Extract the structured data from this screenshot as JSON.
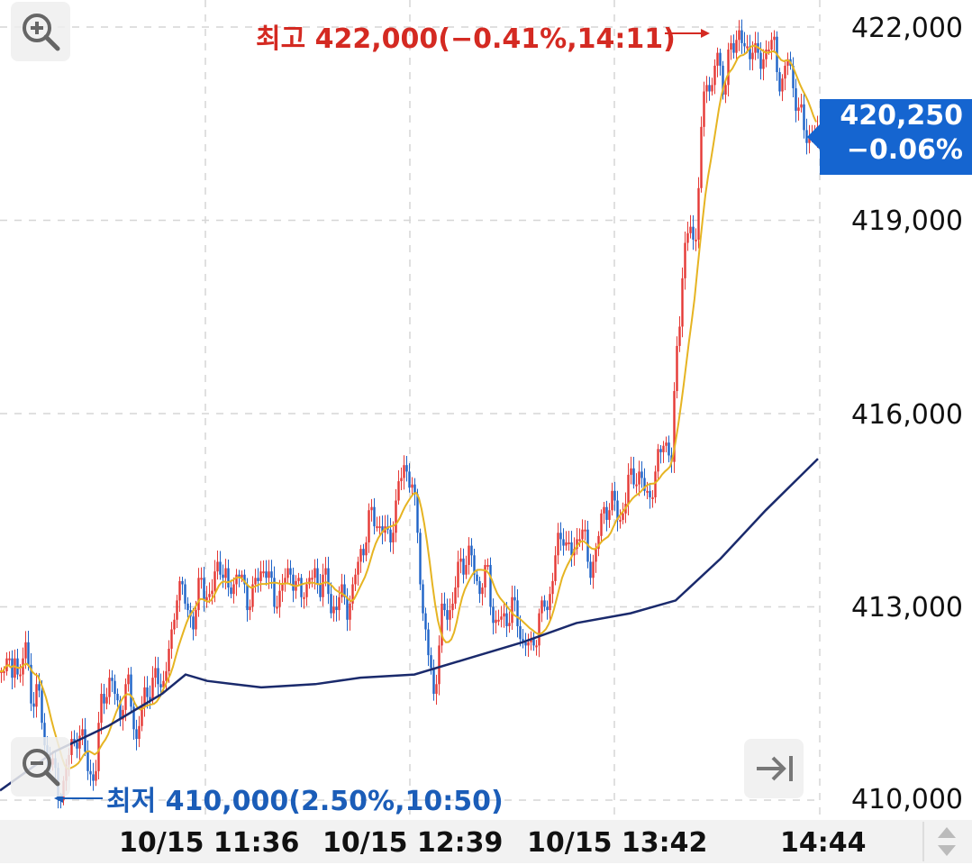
{
  "chart_data": {
    "type": "bar",
    "y_ticks": [
      "422,000",
      "419,000",
      "416,000",
      "413,000",
      "410,000"
    ],
    "y_tick_values": [
      422000,
      419000,
      416000,
      413000,
      410000
    ],
    "ylim": [
      409950,
      422100
    ],
    "x_ticks": [
      "10/15 11:36",
      "10/15 12:39",
      "10/15 13:42",
      "14:44"
    ],
    "grid": true,
    "high_label": "최고 422,000(−0.41%,14:11)",
    "low_label": "최저 410,000(2.50%,10:50)",
    "current": {
      "price": "420,250",
      "change": "−0.06%"
    },
    "colors": {
      "up": "#e53935",
      "down": "#1e63c8",
      "ma_short": "#e6b422",
      "ma_long": "#1a2a6c"
    },
    "price_path": [
      [
        0,
        411900
      ],
      [
        6,
        412400
      ],
      [
        12,
        411700
      ],
      [
        14,
        412300
      ],
      [
        20,
        411900
      ],
      [
        26,
        412500
      ],
      [
        32,
        411600
      ],
      [
        40,
        411800
      ],
      [
        48,
        410800
      ],
      [
        56,
        410700
      ],
      [
        62,
        410000
      ],
      [
        70,
        410400
      ],
      [
        78,
        410800
      ],
      [
        86,
        411100
      ],
      [
        94,
        410600
      ],
      [
        104,
        410300
      ],
      [
        112,
        411700
      ],
      [
        122,
        411800
      ],
      [
        132,
        411400
      ],
      [
        142,
        411800
      ],
      [
        150,
        410900
      ],
      [
        160,
        411700
      ],
      [
        170,
        411800
      ],
      [
        180,
        411900
      ],
      [
        190,
        412500
      ],
      [
        196,
        413500
      ],
      [
        204,
        413000
      ],
      [
        214,
        412800
      ],
      [
        222,
        413400
      ],
      [
        232,
        413100
      ],
      [
        242,
        413800
      ],
      [
        252,
        413200
      ],
      [
        262,
        413600
      ],
      [
        272,
        413100
      ],
      [
        282,
        413300
      ],
      [
        292,
        413700
      ],
      [
        302,
        413100
      ],
      [
        312,
        413300
      ],
      [
        322,
        413600
      ],
      [
        332,
        413100
      ],
      [
        342,
        413500
      ],
      [
        352,
        413300
      ],
      [
        358,
        413600
      ],
      [
        366,
        412900
      ],
      [
        374,
        413200
      ],
      [
        384,
        413000
      ],
      [
        394,
        413500
      ],
      [
        402,
        414000
      ],
      [
        410,
        414400
      ],
      [
        420,
        414300
      ],
      [
        430,
        414000
      ],
      [
        440,
        414700
      ],
      [
        448,
        415300
      ],
      [
        456,
        414800
      ],
      [
        462,
        414200
      ],
      [
        468,
        412900
      ],
      [
        474,
        412200
      ],
      [
        480,
        411700
      ],
      [
        490,
        412900
      ],
      [
        500,
        413000
      ],
      [
        510,
        413700
      ],
      [
        520,
        413800
      ],
      [
        530,
        413300
      ],
      [
        540,
        413500
      ],
      [
        548,
        412700
      ],
      [
        558,
        412800
      ],
      [
        568,
        413000
      ],
      [
        578,
        412500
      ],
      [
        588,
        412300
      ],
      [
        598,
        412900
      ],
      [
        606,
        413000
      ],
      [
        614,
        413700
      ],
      [
        624,
        414200
      ],
      [
        634,
        413700
      ],
      [
        644,
        414400
      ],
      [
        652,
        413500
      ],
      [
        660,
        413900
      ],
      [
        668,
        414400
      ],
      [
        676,
        414700
      ],
      [
        686,
        414300
      ],
      [
        696,
        414900
      ],
      [
        706,
        415100
      ],
      [
        716,
        414700
      ],
      [
        726,
        415000
      ],
      [
        736,
        415700
      ],
      [
        744,
        415200
      ],
      [
        750,
        417100
      ],
      [
        756,
        418100
      ],
      [
        764,
        419000
      ],
      [
        770,
        418600
      ],
      [
        776,
        420000
      ],
      [
        782,
        421400
      ],
      [
        788,
        420900
      ],
      [
        794,
        421600
      ],
      [
        802,
        421100
      ],
      [
        810,
        421600
      ],
      [
        818,
        422000
      ],
      [
        826,
        421500
      ],
      [
        834,
        421800
      ],
      [
        842,
        421300
      ],
      [
        850,
        421800
      ],
      [
        858,
        421600
      ],
      [
        866,
        421100
      ],
      [
        874,
        421500
      ],
      [
        882,
        420900
      ],
      [
        890,
        420400
      ],
      [
        900,
        420300
      ],
      [
        908,
        420250
      ]
    ],
    "ma_long": [
      [
        0,
        410150
      ],
      [
        60,
        410750
      ],
      [
        120,
        411150
      ],
      [
        180,
        411650
      ],
      [
        206,
        411950
      ],
      [
        230,
        411850
      ],
      [
        290,
        411750
      ],
      [
        350,
        411800
      ],
      [
        400,
        411900
      ],
      [
        460,
        411950
      ],
      [
        520,
        412200
      ],
      [
        580,
        412450
      ],
      [
        640,
        412750
      ],
      [
        700,
        412900
      ],
      [
        750,
        413100
      ],
      [
        800,
        413750
      ],
      [
        850,
        414500
      ],
      [
        908,
        415300
      ]
    ]
  }
}
